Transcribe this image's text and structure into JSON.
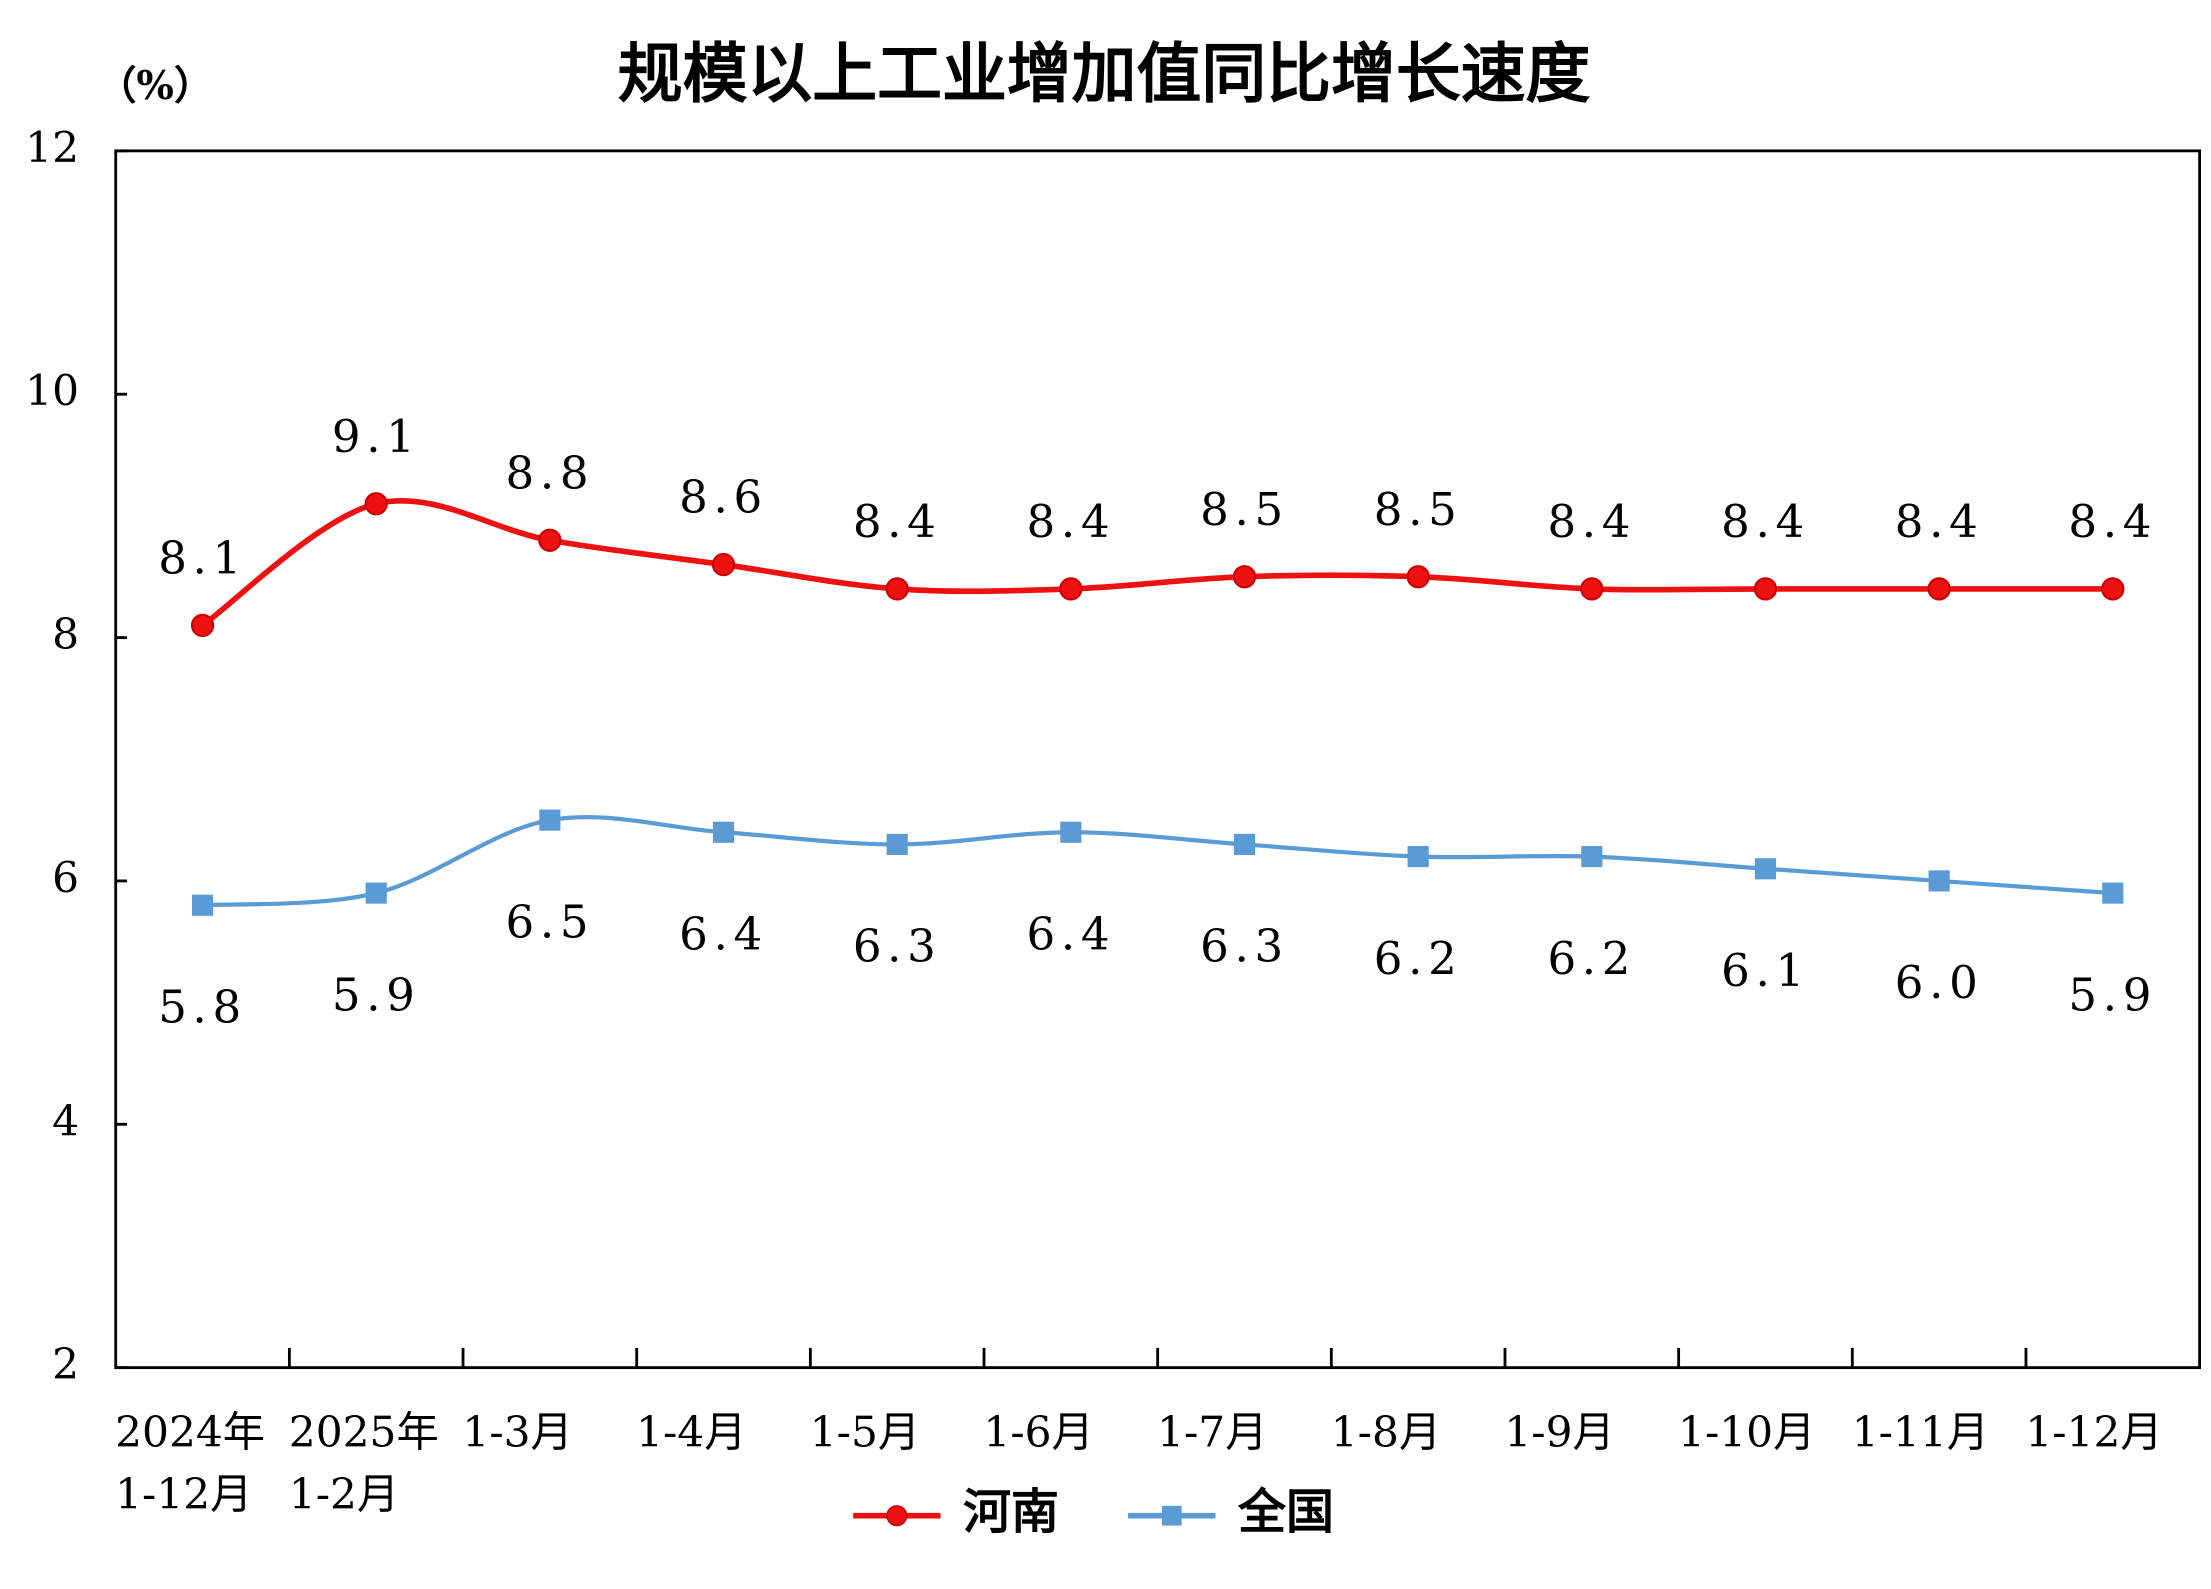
{
  "chart_data": {
    "type": "line",
    "title": "规模以上工业增加值同比增长速度",
    "y_label": "（%）",
    "categories": [
      "2024年\n1-12月",
      "2025年\n1-2月",
      "1-3月",
      "1-4月",
      "1-5月",
      "1-6月",
      "1-7月",
      "1-8月",
      "1-9月",
      "1-10月",
      "1-11月",
      "1-12月"
    ],
    "series": [
      {
        "name": "河南",
        "color": "#ee1111",
        "marker": "circle",
        "values": [
          8.1,
          9.1,
          8.8,
          8.6,
          8.4,
          8.4,
          8.5,
          8.5,
          8.4,
          8.4,
          8.4,
          8.4
        ],
        "value_labels": [
          "8.1",
          "9.1",
          "8.8",
          "8.6",
          "8.4",
          "8.4",
          "8.5",
          "8.5",
          "8.4",
          "8.4",
          "8.4",
          "8.4"
        ]
      },
      {
        "name": "全国",
        "color": "#5b9bd5",
        "marker": "square",
        "values": [
          5.8,
          5.9,
          6.5,
          6.4,
          6.3,
          6.4,
          6.3,
          6.2,
          6.2,
          6.1,
          6.0,
          5.9
        ],
        "value_labels": [
          "5.8",
          "5.9",
          "6.5",
          "6.4",
          "6.3",
          "6.4",
          "6.3",
          "6.2",
          "6.2",
          "6.1",
          "6.0",
          "5.9"
        ]
      }
    ],
    "ylim": [
      2,
      12
    ],
    "yticks": [
      2,
      4,
      6,
      8,
      10,
      12
    ],
    "smooth": true,
    "legend": "bottom"
  }
}
